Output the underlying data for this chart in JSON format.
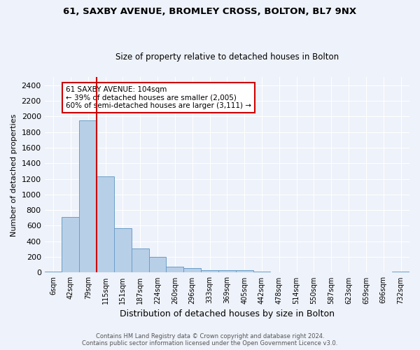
{
  "title_line1": "61, SAXBY AVENUE, BROMLEY CROSS, BOLTON, BL7 9NX",
  "title_line2": "Size of property relative to detached houses in Bolton",
  "xlabel": "Distribution of detached houses by size in Bolton",
  "ylabel": "Number of detached properties",
  "categories": [
    "6sqm",
    "42sqm",
    "79sqm",
    "115sqm",
    "151sqm",
    "187sqm",
    "224sqm",
    "260sqm",
    "296sqm",
    "333sqm",
    "369sqm",
    "405sqm",
    "442sqm",
    "478sqm",
    "514sqm",
    "550sqm",
    "587sqm",
    "623sqm",
    "659sqm",
    "696sqm",
    "732sqm"
  ],
  "values": [
    15,
    710,
    1950,
    1230,
    570,
    305,
    200,
    80,
    55,
    35,
    35,
    30,
    12,
    8,
    8,
    5,
    5,
    5,
    3,
    3,
    12
  ],
  "bar_color": "#b8cfe8",
  "bar_edge_color": "#6a9ec8",
  "vline_x": 2.5,
  "vline_color": "#cc0000",
  "annotation_text": "61 SAXBY AVENUE: 104sqm\n← 39% of detached houses are smaller (2,005)\n60% of semi-detached houses are larger (3,111) →",
  "annotation_box_color": "white",
  "annotation_box_edge_color": "#cc0000",
  "ylim": [
    0,
    2500
  ],
  "yticks": [
    0,
    200,
    400,
    600,
    800,
    1000,
    1200,
    1400,
    1600,
    1800,
    2000,
    2200,
    2400
  ],
  "background_color": "#eef2fa",
  "grid_color": "#ffffff",
  "footer_line1": "Contains HM Land Registry data © Crown copyright and database right 2024.",
  "footer_line2": "Contains public sector information licensed under the Open Government Licence v3.0."
}
